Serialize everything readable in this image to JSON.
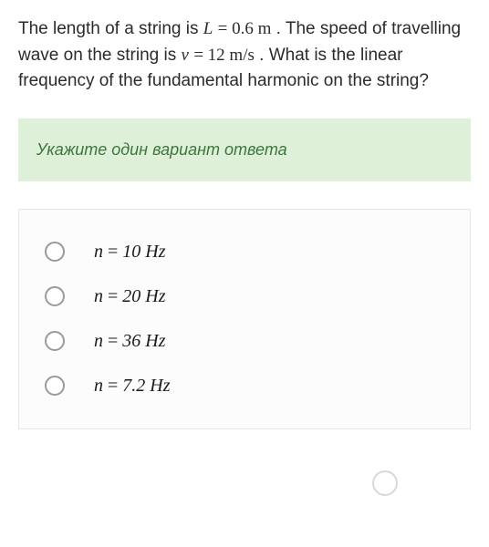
{
  "question": {
    "text_parts": [
      "The length of a string is ",
      ". The speed of travelling wave on the string is ",
      ". What is the linear frequency of the fundamental harmonic on the string?"
    ],
    "L_expr_var": "L",
    "L_expr_val": "= 0.6 m",
    "v_expr_var": "v",
    "v_expr_val": "= 12 m/s",
    "text_color": "#2b2b2b",
    "fontsize": 19
  },
  "instruction": {
    "text": "Укажите один вариант ответа",
    "background_color": "#dff0d8",
    "text_color": "#3c763d",
    "fontsize": 18
  },
  "choices": {
    "type": "radio",
    "var": "n",
    "eq": " = ",
    "items": [
      {
        "value": "10 Hz"
      },
      {
        "value": "20 Hz"
      },
      {
        "value": "36 Hz"
      },
      {
        "value": "7.2 Hz"
      }
    ],
    "box_border_color": "#e6e6e6",
    "box_background": "#fcfcfc",
    "radio_border_color": "#9a9a9a",
    "label_fontsize": 20
  },
  "decor_circle_color": "#d8d8d8"
}
